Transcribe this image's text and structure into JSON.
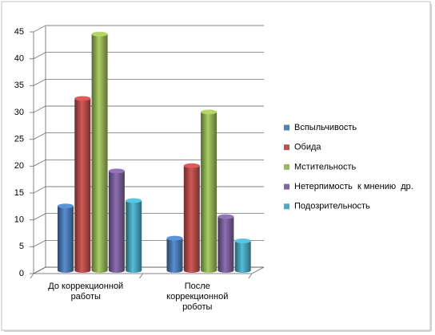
{
  "chart_data": {
    "type": "bar",
    "categories": [
      "До коррекционной работы",
      "После коррекционной роботы"
    ],
    "series": [
      {
        "name": "Вспыльчивость",
        "color": "#4f81bd",
        "values": [
          12,
          6
        ]
      },
      {
        "name": "Обида",
        "color": "#c0504d",
        "values": [
          32,
          19.5
        ]
      },
      {
        "name": "Мстительность",
        "color": "#9bbb59",
        "values": [
          44,
          29.5
        ]
      },
      {
        "name": "Нетерпимость  к мнению  др.",
        "color": "#8064a2",
        "values": [
          18.5,
          10
        ]
      },
      {
        "name": "Подозрительность",
        "color": "#4bacc6",
        "values": [
          13,
          5.5
        ]
      }
    ],
    "ylim": [
      0,
      45
    ],
    "yticks": [
      0,
      5,
      10,
      15,
      20,
      25,
      30,
      35,
      40,
      45
    ],
    "grid": true,
    "legend": "right"
  }
}
